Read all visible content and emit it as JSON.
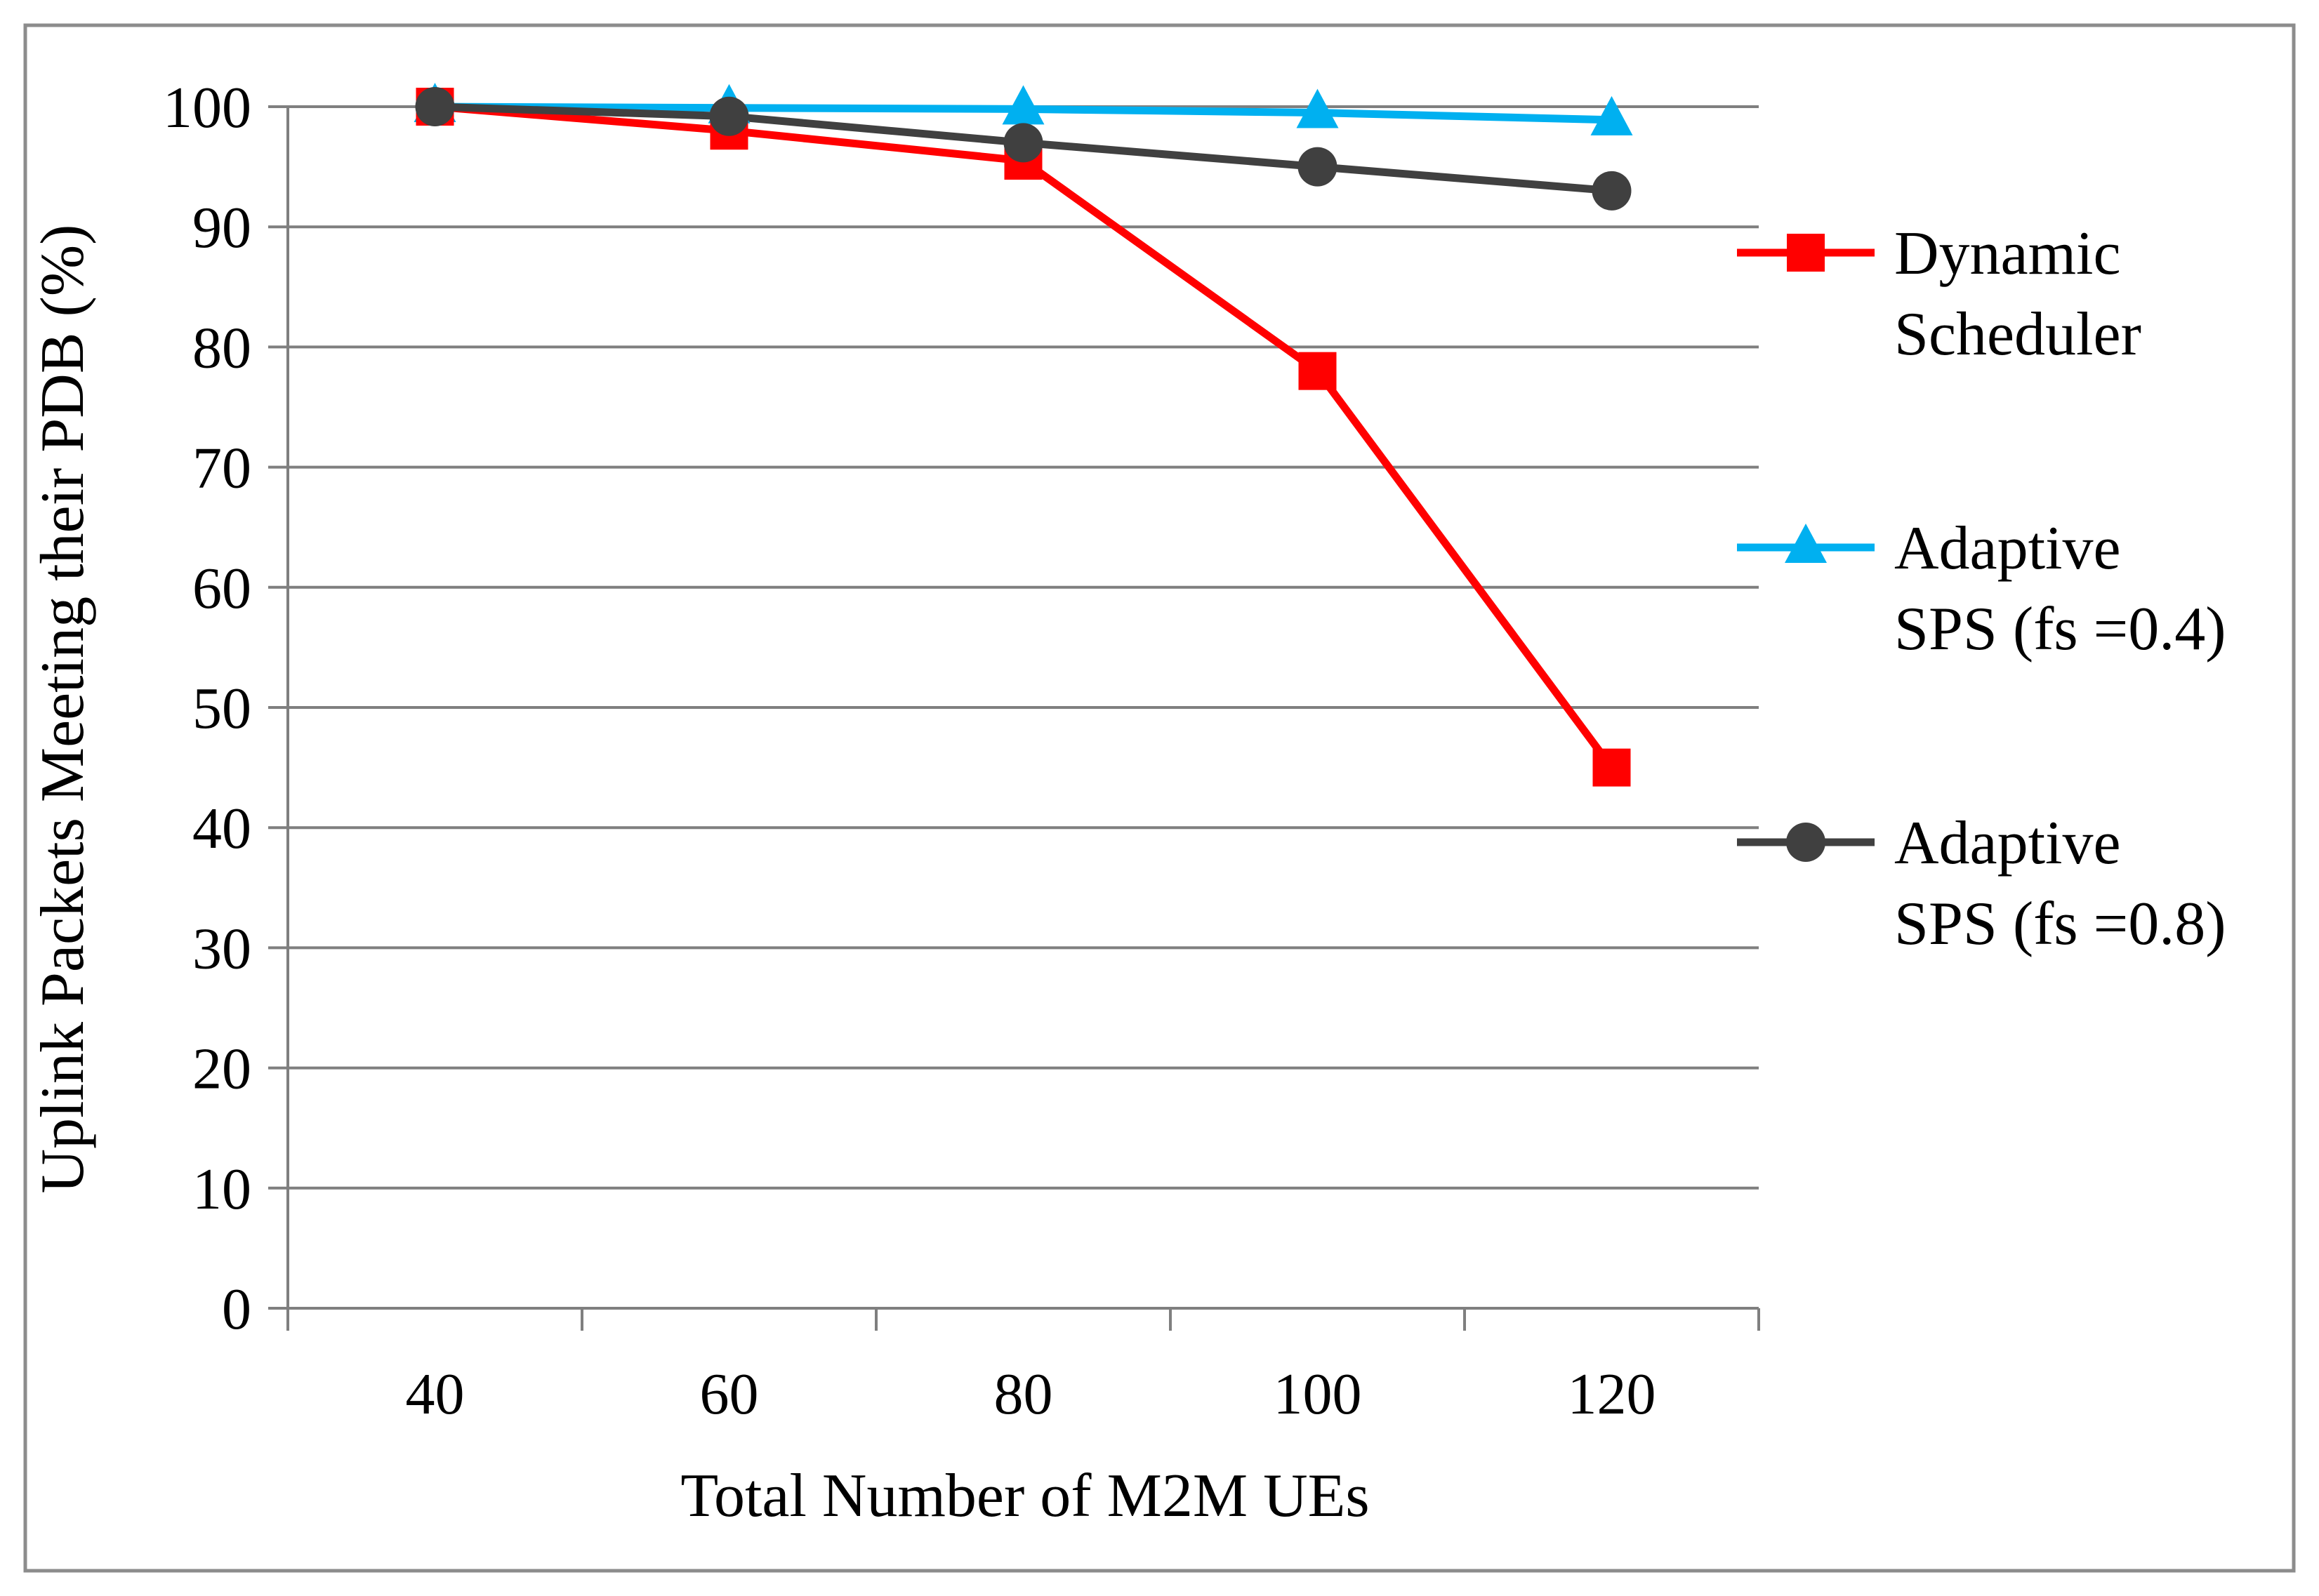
{
  "chart_data": {
    "type": "line",
    "title": "",
    "xlabel": "Total Number of M2M UEs",
    "ylabel": "Uplink Packets Meeting their PDB (%)",
    "x": [
      40,
      60,
      80,
      100,
      120
    ],
    "x_tick_labels": [
      "40",
      "60",
      "80",
      "100",
      "120"
    ],
    "ylim": [
      0,
      100
    ],
    "y_ticks": [
      0,
      10,
      20,
      30,
      40,
      50,
      60,
      70,
      80,
      90,
      100
    ],
    "y_tick_labels": [
      "0",
      "10",
      "20",
      "30",
      "40",
      "50",
      "60",
      "70",
      "80",
      "90",
      "100"
    ],
    "grid": "horizontal",
    "legend_position": "right",
    "series": [
      {
        "name": "Dynamic Scheduler",
        "legend_lines": [
          "Dynamic",
          "Scheduler"
        ],
        "values": [
          100,
          98,
          95.5,
          78,
          45
        ],
        "color": "#ff0000",
        "marker": "square"
      },
      {
        "name": "Adaptive SPS (fs =0.4)",
        "legend_lines": [
          "Adaptive",
          "SPS (fs =0.4)"
        ],
        "values": [
          100,
          99.9,
          99.8,
          99.5,
          98.9
        ],
        "color": "#00b0f0",
        "marker": "triangle"
      },
      {
        "name": "Adaptive SPS (fs =0.8)",
        "legend_lines": [
          "Adaptive",
          "SPS (fs =0.8)"
        ],
        "values": [
          100,
          99.2,
          97,
          95,
          93
        ],
        "color": "#404040",
        "marker": "circle"
      }
    ]
  }
}
